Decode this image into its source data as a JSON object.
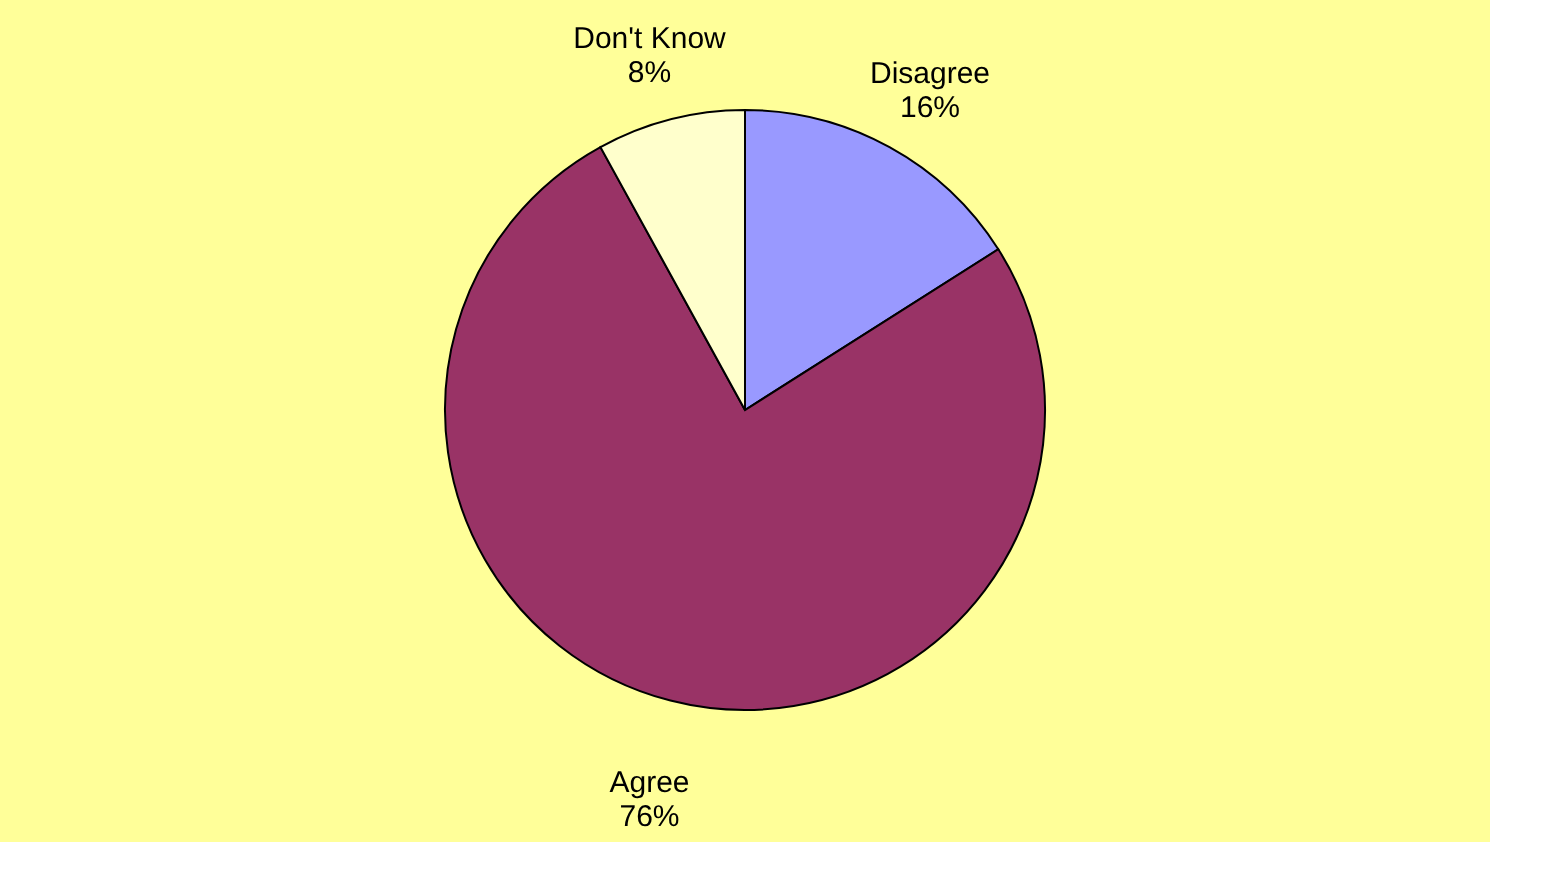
{
  "chart_data": {
    "type": "pie",
    "categories": [
      "Disagree",
      "Agree",
      "Don't Know"
    ],
    "values": [
      16,
      76,
      8
    ],
    "colors": [
      "#9999ff",
      "#993366",
      "#ffffcc"
    ],
    "value_labels": [
      "16%",
      "76%",
      "8%"
    ],
    "legend": false
  }
}
